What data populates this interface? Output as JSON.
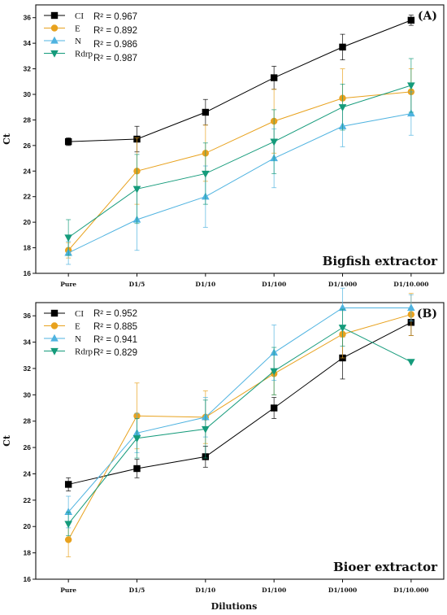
{
  "chart_data": [
    {
      "type": "line",
      "panel_label": "(A)",
      "annotation": "Bigfish extractor",
      "ylabel": "Ct",
      "xlabel": "",
      "categories": [
        "Pure",
        "D1/5",
        "D1/10",
        "D1/100",
        "D1/1000",
        "D1/10.000"
      ],
      "ylim": [
        16,
        37
      ],
      "yticks": [
        16,
        18,
        20,
        22,
        24,
        26,
        28,
        30,
        32,
        34,
        36
      ],
      "grid": false,
      "legend_position": "top-left",
      "series": [
        {
          "name": "CI",
          "r2": "R² = 0.967",
          "color": "#000000",
          "marker": "square",
          "values": [
            26.3,
            26.5,
            28.6,
            31.3,
            33.7,
            35.8
          ],
          "errors": [
            0.3,
            1.0,
            1.0,
            0.9,
            1.0,
            0.4
          ]
        },
        {
          "name": "E",
          "r2": "R² = 0.892",
          "color": "#E8A21E",
          "marker": "circle",
          "values": [
            17.8,
            24.0,
            25.4,
            27.9,
            29.7,
            30.2
          ],
          "errors": [
            0.6,
            2.6,
            2.2,
            2.5,
            2.3,
            1.8
          ]
        },
        {
          "name": "N",
          "r2": "R² = 0.986",
          "color": "#4FB3E0",
          "marker": "triangle-up",
          "values": [
            17.6,
            20.2,
            22.0,
            25.0,
            27.5,
            28.5
          ],
          "errors": [
            0.9,
            2.4,
            2.4,
            2.3,
            1.6,
            1.7
          ]
        },
        {
          "name": "Rdrp",
          "r2": "R² = 0.987",
          "color": "#159B7B",
          "marker": "triangle-down",
          "values": [
            18.8,
            22.6,
            23.8,
            26.3,
            29.0,
            30.7
          ],
          "errors": [
            1.4,
            2.7,
            2.4,
            2.5,
            1.8,
            2.1
          ]
        }
      ]
    },
    {
      "type": "line",
      "panel_label": "(B)",
      "annotation": "Bioer extractor",
      "ylabel": "Ct",
      "xlabel": "Dilutions",
      "categories": [
        "Pure",
        "D1/5",
        "D1/10",
        "D1/100",
        "D1/1000",
        "D1/10.000"
      ],
      "ylim": [
        16,
        37
      ],
      "yticks": [
        16,
        18,
        20,
        22,
        24,
        26,
        28,
        30,
        32,
        34,
        36
      ],
      "grid": false,
      "legend_position": "top-left",
      "series": [
        {
          "name": "CI",
          "r2": "R² = 0.952",
          "color": "#000000",
          "marker": "square",
          "values": [
            23.2,
            24.4,
            25.3,
            29.0,
            32.8,
            35.5
          ],
          "errors": [
            0.5,
            0.7,
            0.8,
            0.8,
            1.6,
            1.0
          ]
        },
        {
          "name": "E",
          "r2": "R² = 0.885",
          "color": "#E8A21E",
          "marker": "circle",
          "values": [
            19.0,
            28.4,
            28.3,
            31.6,
            34.6,
            36.1
          ],
          "errors": [
            1.3,
            2.5,
            2.0,
            1.6,
            1.8,
            1.6
          ]
        },
        {
          "name": "N",
          "r2": "R² = 0.941",
          "color": "#4FB3E0",
          "marker": "triangle-up",
          "values": [
            21.1,
            27.1,
            28.3,
            33.2,
            36.6,
            36.6
          ],
          "errors": [
            1.2,
            1.5,
            1.5,
            2.1,
            1.5,
            1.0
          ]
        },
        {
          "name": "Rdrp",
          "r2": "R² = 0.829",
          "color": "#159B7B",
          "marker": "triangle-down",
          "values": [
            20.2,
            26.7,
            27.4,
            31.8,
            35.1,
            32.5
          ],
          "errors": [
            0.9,
            1.5,
            2.2,
            1.8,
            1.4,
            0.0
          ]
        }
      ]
    }
  ]
}
